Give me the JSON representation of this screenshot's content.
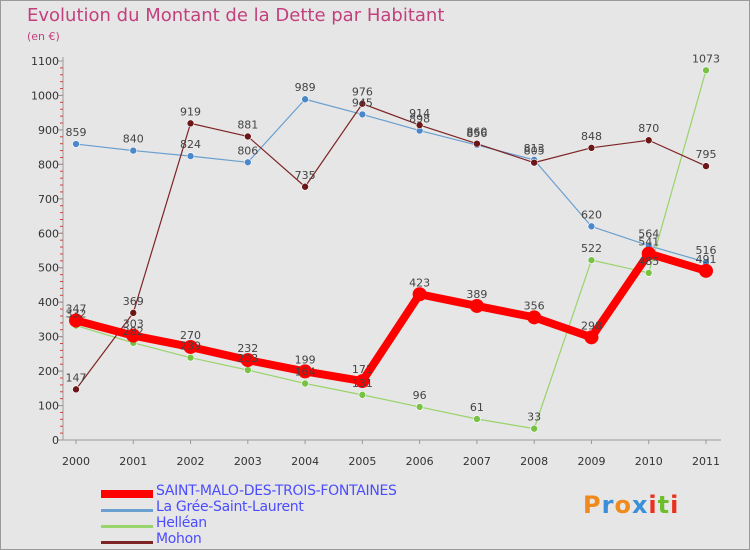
{
  "header": {
    "title": "Evolution du Montant de la Dette par Habitant",
    "subtitle": "(en €)"
  },
  "logo": {
    "text": "Proxiti",
    "letters": [
      {
        "ch": "P",
        "color": "#f08a1c"
      },
      {
        "ch": "r",
        "color": "#3a8fd8"
      },
      {
        "ch": "o",
        "color": "#f08a1c"
      },
      {
        "ch": "x",
        "color": "#3a8fd8"
      },
      {
        "ch": "i",
        "color": "#e8321e"
      },
      {
        "ch": "t",
        "color": "#6cbf2a"
      },
      {
        "ch": "i",
        "color": "#e8321e"
      }
    ]
  },
  "chart_data": {
    "type": "line",
    "title": "Evolution du Montant de la Dette par Habitant",
    "ylabel": "(en €)",
    "xlabel": "",
    "x": [
      "2000",
      "2001",
      "2002",
      "2003",
      "2004",
      "2005",
      "2006",
      "2007",
      "2008",
      "2009",
      "2010",
      "2011"
    ],
    "ylim": [
      0,
      1100
    ],
    "yticks": [
      0,
      100,
      200,
      300,
      400,
      500,
      600,
      700,
      800,
      900,
      1000,
      1100
    ],
    "grid": false,
    "legend_position": "bottom-left",
    "series": [
      {
        "name": "SAINT-MALO-DES-TROIS-FONTAINES",
        "color": "#ff0000",
        "line_width": 8,
        "marker_color": "#ff0000",
        "marker_size": 7,
        "values": [
          347,
          303,
          270,
          232,
          199,
          171,
          423,
          389,
          356,
          298,
          541,
          491
        ]
      },
      {
        "name": "La Grée-Saint-Laurent",
        "color": "#6a9fd0",
        "line_width": 1.2,
        "marker_color": "#4b88c9",
        "marker_size": 3.5,
        "values": [
          859,
          840,
          824,
          806,
          989,
          945,
          898,
          856,
          813,
          620,
          564,
          516
        ]
      },
      {
        "name": "Helléan",
        "color": "#99d36b",
        "line_width": 1.2,
        "marker_color": "#77c244",
        "marker_size": 3.5,
        "values": [
          332,
          282,
          239,
          203,
          164,
          131,
          96,
          61,
          33,
          522,
          485,
          1073
        ]
      },
      {
        "name": "Mohon",
        "color": "#7d2424",
        "line_width": 1.2,
        "marker_color": "#6b1717",
        "marker_size": 3.5,
        "values": [
          147,
          369,
          919,
          881,
          735,
          976,
          914,
          860,
          805,
          848,
          870,
          795
        ]
      }
    ]
  }
}
